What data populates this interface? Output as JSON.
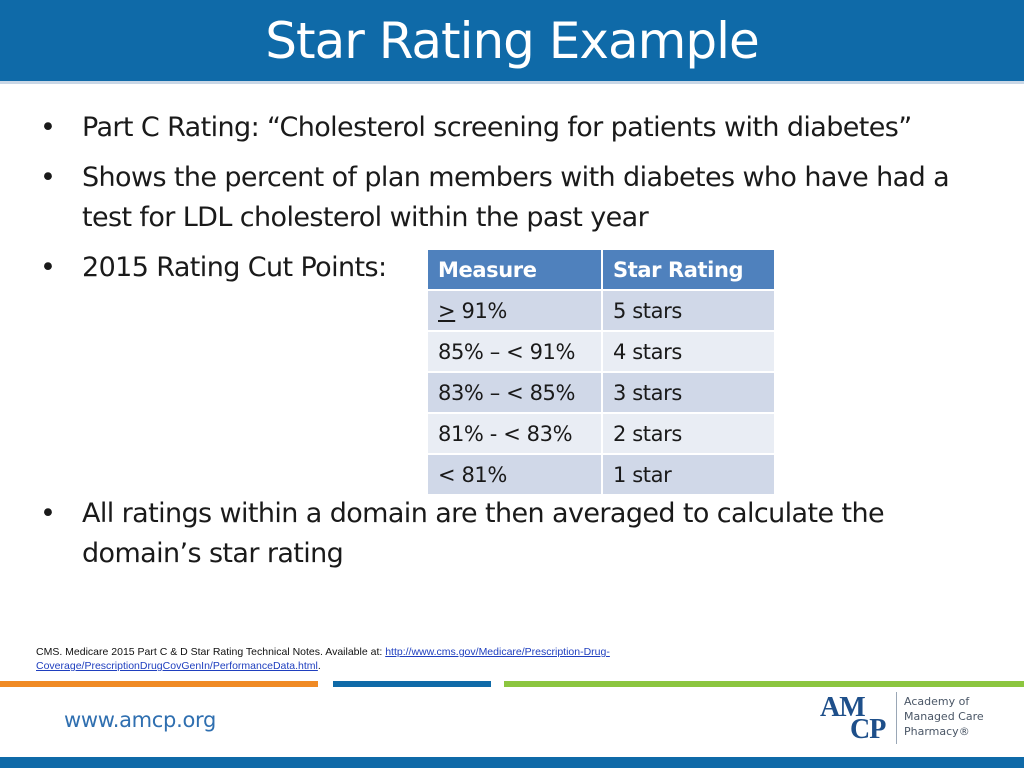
{
  "slide": {
    "title": "Star Rating Example"
  },
  "bullets": {
    "glyph": "•",
    "part_c": "Part C Rating: “Cholesterol screening for patients with diabetes”",
    "shows": "Shows the percent of plan members with diabetes who have had a test for LDL cholesterol within the past year",
    "cut_points": "2015 Rating Cut Points:",
    "averaged": "All ratings within a domain are then averaged to calculate the domain’s star rating"
  },
  "table": {
    "headers": {
      "measure": "Measure",
      "rating": "Star Rating"
    },
    "rows": [
      {
        "measure_symbol": ">",
        "measure_rest": " 91%",
        "rating": "5 stars"
      },
      {
        "measure": "85% – < 91%",
        "rating": "4 stars"
      },
      {
        "measure": "83% – < 85%",
        "rating": "3 stars"
      },
      {
        "measure": "81% - < 83%",
        "rating": "2 stars"
      },
      {
        "measure": "< 81%",
        "rating": "1 star"
      }
    ]
  },
  "citation": {
    "text": "CMS.  Medicare 2015 Part C & D Star Rating Technical Notes. Available at: ",
    "link": "http://www.cms.gov/Medicare/Prescription-Drug-Coverage/PrescriptionDrugCovGenIn/PerformanceData.html",
    "end": "."
  },
  "footer": {
    "url": "www.amcp.org",
    "logo_top": "AM",
    "logo_bottom": "CP",
    "logo_line1": "Academy of",
    "logo_line2": "Managed Care",
    "logo_line3": "Pharmacy®"
  },
  "colors": {
    "title_bar": "#0f6aa8",
    "table_header": "#4f81bd",
    "stripe_orange": "#f08a24",
    "stripe_green": "#8cc63f"
  }
}
